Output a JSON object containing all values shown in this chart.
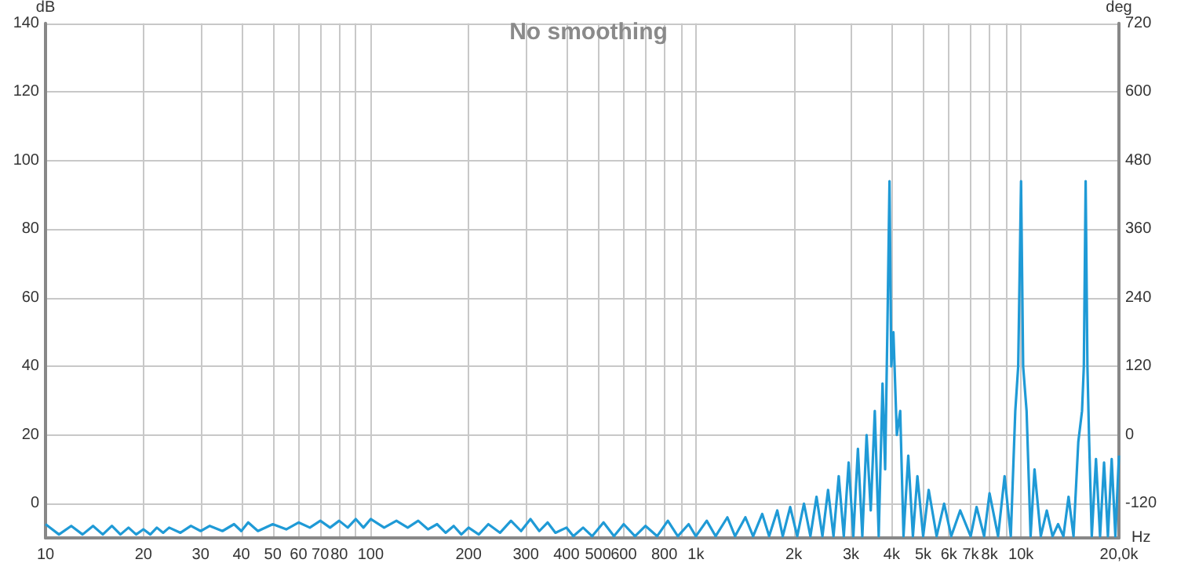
{
  "chart_data": {
    "type": "line",
    "title": "No smoothing",
    "xlabel": "Hz",
    "ylabel": "dB",
    "y2label": "deg",
    "log": "x",
    "grid": true,
    "marker": "none",
    "line_style": "solid",
    "xlim": [
      10,
      20000
    ],
    "xticks": [
      10,
      20,
      30,
      40,
      50,
      60,
      70,
      80,
      {
        "value": 90,
        "label": null
      },
      100,
      200,
      300,
      400,
      500,
      600,
      {
        "value": 700,
        "label": null
      },
      800,
      {
        "value": 900,
        "label": null
      },
      {
        "value": 1000,
        "label": "1k"
      },
      {
        "value": 2000,
        "label": "2k"
      },
      {
        "value": 3000,
        "label": "3k"
      },
      {
        "value": 4000,
        "label": "4k"
      },
      {
        "value": 5000,
        "label": "5k"
      },
      {
        "value": 6000,
        "label": "6k"
      },
      {
        "value": 7000,
        "label": "7k"
      },
      {
        "value": 8000,
        "label": "8k"
      },
      {
        "value": 9000,
        "label": null
      },
      {
        "value": 10000,
        "label": "10k"
      },
      {
        "value": 20000,
        "label": "20,0k"
      }
    ],
    "ylim": [
      -10,
      140
    ],
    "yticks": [
      0,
      20,
      40,
      60,
      80,
      100,
      120,
      140
    ],
    "y2lim": [
      -180,
      720
    ],
    "y2ticks": [
      -120,
      0,
      120,
      240,
      360,
      480,
      600,
      720
    ],
    "series": [
      {
        "color": "#1f9ad6",
        "x": [
          10,
          11,
          12,
          13,
          14,
          15,
          16,
          17,
          18,
          19,
          20,
          21,
          22,
          23,
          24,
          26,
          28,
          30,
          32,
          35,
          38,
          40,
          42,
          45,
          50,
          55,
          60,
          65,
          70,
          75,
          80,
          85,
          90,
          95,
          100,
          110,
          120,
          130,
          140,
          150,
          160,
          170,
          180,
          190,
          200,
          215,
          230,
          250,
          270,
          290,
          310,
          330,
          350,
          370,
          400,
          420,
          450,
          480,
          520,
          560,
          600,
          650,
          700,
          760,
          820,
          880,
          950,
          1000,
          1080,
          1150,
          1250,
          1320,
          1420,
          1500,
          1600,
          1680,
          1780,
          1850,
          1950,
          2050,
          2150,
          2250,
          2350,
          2450,
          2550,
          2650,
          2750,
          2850,
          2950,
          3050,
          3150,
          3250,
          3350,
          3450,
          3550,
          3650,
          3750,
          3820,
          3880,
          3940,
          3990,
          4050,
          4150,
          4250,
          4350,
          4500,
          4650,
          4800,
          5000,
          5200,
          5500,
          5800,
          6100,
          6500,
          7000,
          7300,
          7700,
          8000,
          8500,
          8900,
          9300,
          9600,
          9800,
          10000,
          10150,
          10400,
          10700,
          11000,
          11500,
          12000,
          12500,
          13000,
          13500,
          14000,
          14500,
          15000,
          15400,
          15600,
          15800,
          16000,
          16200,
          16500,
          17000,
          17500,
          18000,
          18500,
          19000,
          19500,
          20000
        ],
        "values": [
          -6,
          -9,
          -6.5,
          -9,
          -6.5,
          -9,
          -6.5,
          -9,
          -7,
          -9,
          -7.5,
          -9,
          -7,
          -8.5,
          -7,
          -8.5,
          -6.5,
          -8,
          -6.5,
          -8,
          -6,
          -8,
          -5.5,
          -8,
          -6,
          -7.5,
          -5.5,
          -7,
          -5,
          -7,
          -5,
          -7,
          -4.5,
          -7,
          -4.5,
          -7,
          -5,
          -7,
          -5,
          -7.5,
          -6,
          -8.5,
          -6.5,
          -9,
          -7,
          -9,
          -6,
          -8.5,
          -5,
          -8,
          -4.5,
          -8,
          -5.5,
          -8.5,
          -7,
          -9.5,
          -7,
          -9.5,
          -5.5,
          -9.5,
          -6,
          -9.5,
          -6.5,
          -9.5,
          -5,
          -9.5,
          -6,
          -9.5,
          -5,
          -9.5,
          -4,
          -9.5,
          -4,
          -9.5,
          -3,
          -9.5,
          -2,
          -9.5,
          -1,
          -9.5,
          0,
          -9.5,
          2,
          -9.5,
          4,
          -9.5,
          8,
          -9.5,
          12,
          -9.5,
          16,
          -9.5,
          20,
          -2,
          27,
          -9.5,
          35,
          10,
          50,
          94,
          40,
          50,
          20,
          27,
          -9.5,
          14,
          -9.5,
          8,
          -9.5,
          4,
          -9.5,
          0,
          -9.5,
          -2,
          -9.5,
          -1,
          -9.5,
          3,
          -9.5,
          8,
          -9.5,
          27,
          40,
          94,
          40,
          27,
          -9.5,
          10,
          -9.5,
          -2,
          -9.5,
          -6,
          -9.5,
          2,
          -9.5,
          18,
          27,
          40,
          94,
          40,
          18,
          -9.5,
          13,
          -9.5,
          12,
          -9.5,
          13,
          -9.5,
          14
        ]
      }
    ]
  }
}
